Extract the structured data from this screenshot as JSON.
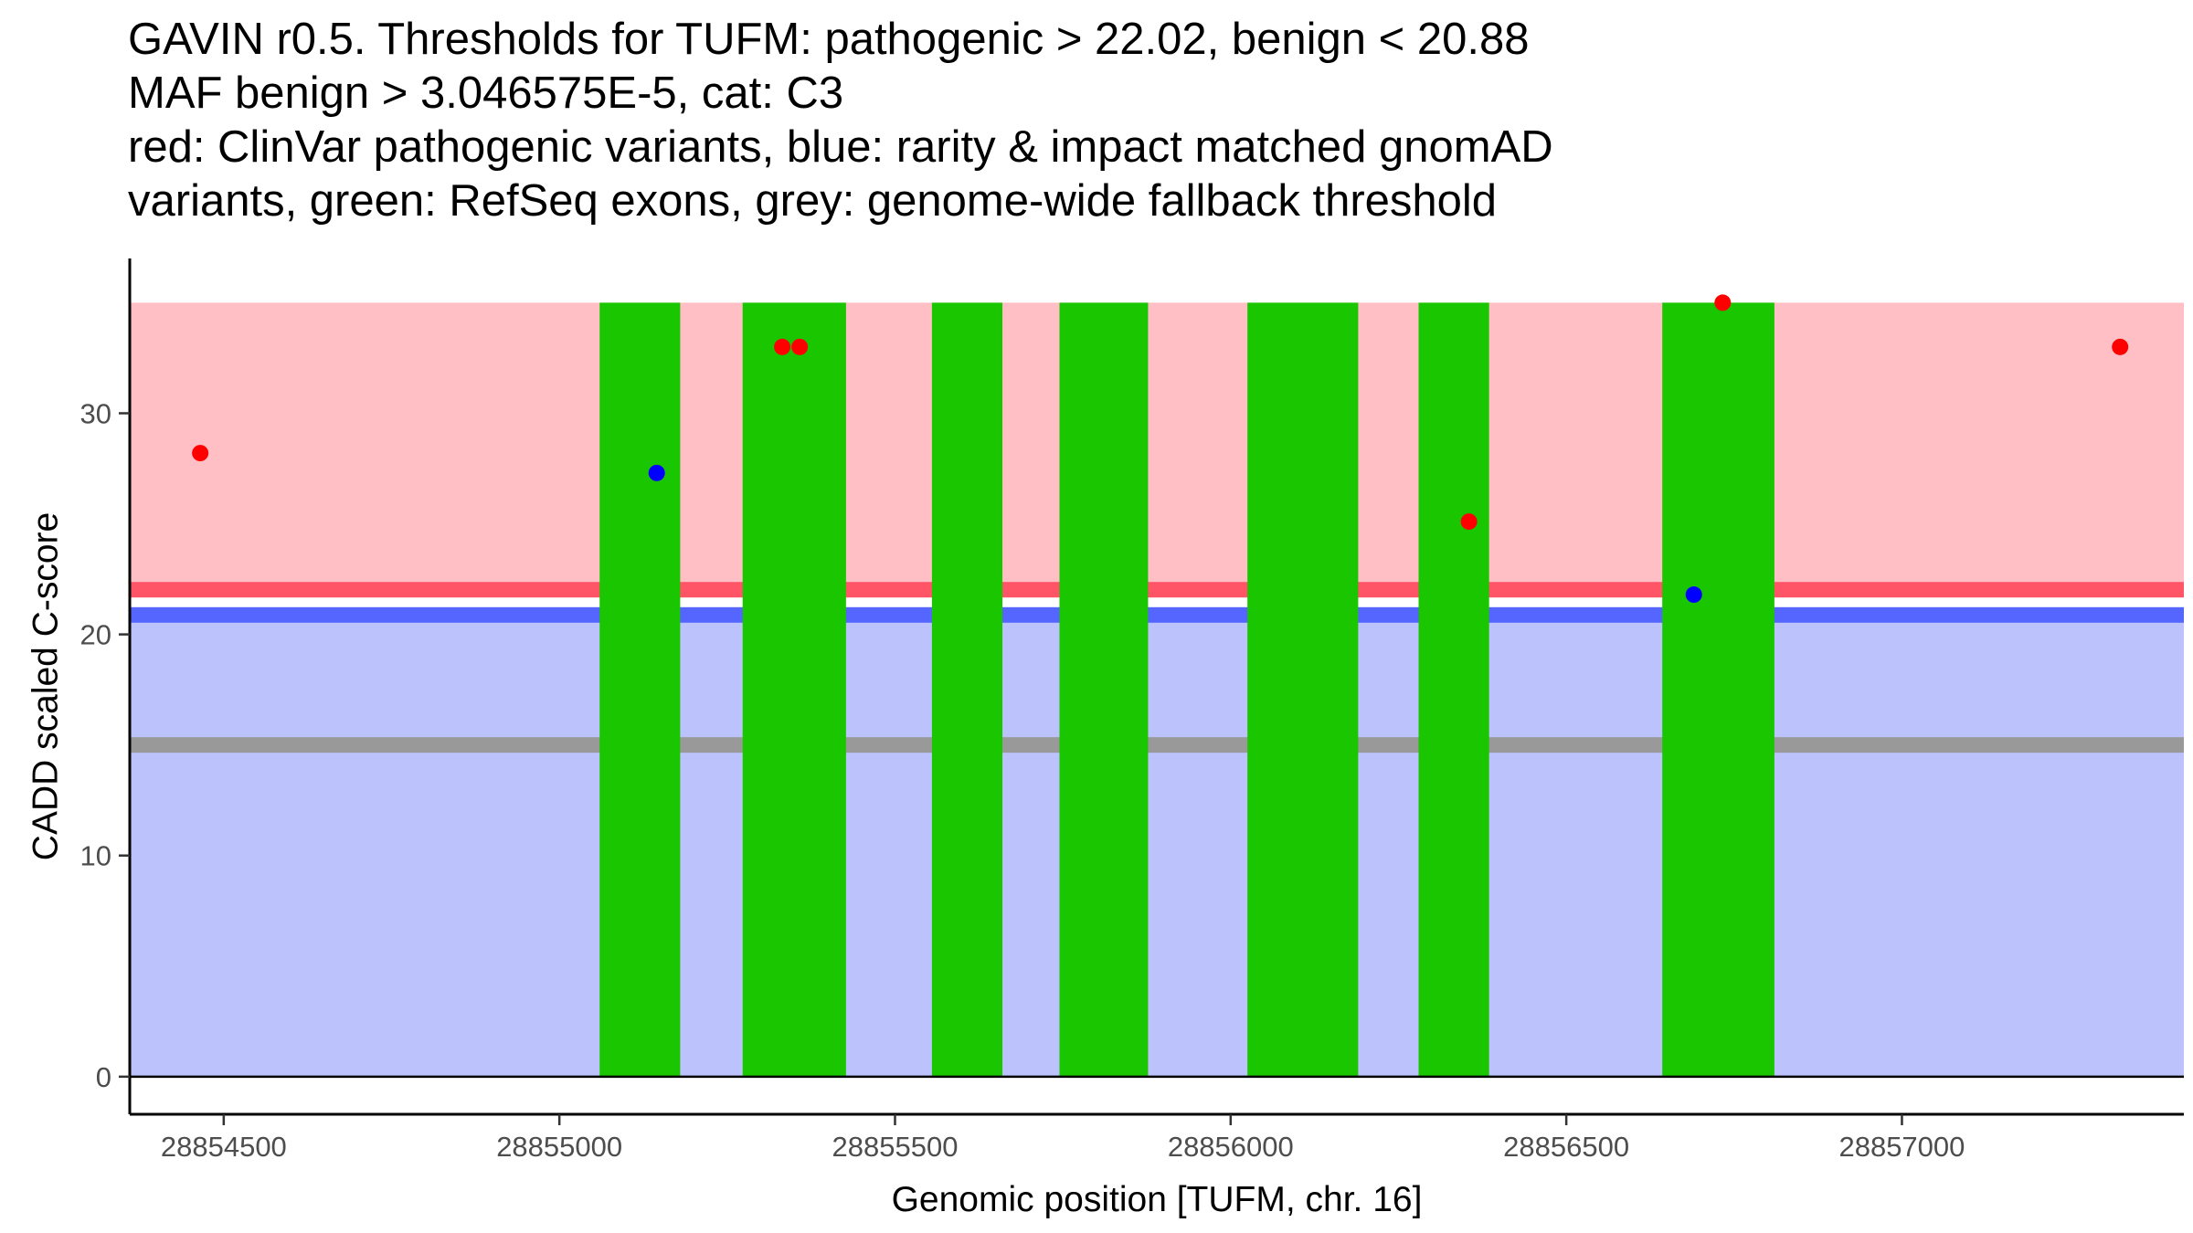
{
  "chart_data": {
    "type": "scatter",
    "title_lines": [
      "GAVIN r0.5. Thresholds for TUFM: pathogenic > 22.02, benign < 20.88",
      "MAF benign > 3.046575E-5, cat: C3",
      "red: ClinVar pathogenic variants, blue: rarity & impact matched gnomAD",
      "variants, green: RefSeq exons, grey: genome-wide fallback threshold"
    ],
    "xlabel": "Genomic position [TUFM, chr. 16]",
    "ylabel": "CADD scaled C-score",
    "xlim": [
      28854360,
      28857420
    ],
    "ylim": [
      -1.7,
      37.0
    ],
    "x_ticks": [
      28854500,
      28855000,
      28855500,
      28856000,
      28856500,
      28857000
    ],
    "x_tick_labels": [
      "28854500",
      "28855000",
      "28855500",
      "28856000",
      "28856500",
      "28857000"
    ],
    "y_ticks": [
      0,
      10,
      20,
      30
    ],
    "y_tick_labels": [
      "0",
      "10",
      "20",
      "30"
    ],
    "pathogenic_threshold": 22.02,
    "benign_threshold": 20.88,
    "fallback_threshold": 15.0,
    "region_top": 35.0,
    "exons": [
      [
        28855060,
        28855180
      ],
      [
        28855273,
        28855427
      ],
      [
        28855555,
        28855660
      ],
      [
        28855745,
        28855877
      ],
      [
        28856025,
        28856190
      ],
      [
        28856280,
        28856385
      ],
      [
        28856643,
        28856810
      ]
    ],
    "series": [
      {
        "name": "ClinVar pathogenic variants",
        "color": "#ff0000",
        "points": [
          [
            28854465,
            28.2
          ],
          [
            28855332,
            33.0
          ],
          [
            28855358,
            33.0
          ],
          [
            28856355,
            25.1
          ],
          [
            28856733,
            35.0
          ],
          [
            28857325,
            33.0
          ]
        ]
      },
      {
        "name": "rarity & impact matched gnomAD variants",
        "color": "#0000ff",
        "points": [
          [
            28855145,
            27.3
          ],
          [
            28856690,
            21.8
          ]
        ]
      }
    ],
    "colors": {
      "pathogenic_region": "#ffbfc4",
      "benign_region": "#bcc3fc",
      "pathogenic_line": "#ff5566",
      "benign_line": "#5566ff",
      "fallback_line": "#999999",
      "exon": "#19c600"
    }
  }
}
